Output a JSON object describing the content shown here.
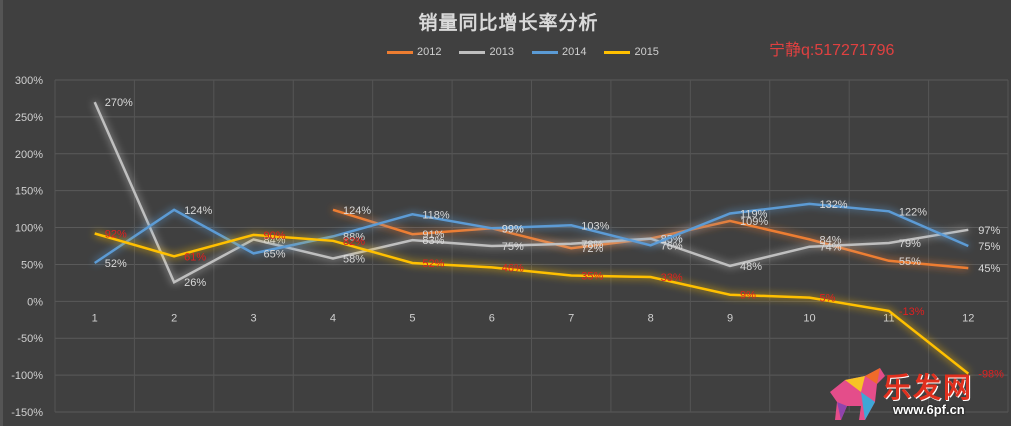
{
  "title": "销量同比增长率分析",
  "watermark": "宁静q:517271796",
  "logo": {
    "text": "乐发网",
    "url": "www.6pf.cn"
  },
  "colors": {
    "2012": "#ed7d31",
    "2013": "#bfbfbf",
    "2014": "#5b9bd5",
    "2015": "#ffc000",
    "label_2015": "#e02020",
    "background": "#404040",
    "grid": "#595959",
    "text": "#d9d9d9"
  },
  "legend": [
    {
      "name": "2012",
      "color": "#ed7d31"
    },
    {
      "name": "2013",
      "color": "#bfbfbf"
    },
    {
      "name": "2014",
      "color": "#5b9bd5"
    },
    {
      "name": "2015",
      "color": "#ffc000"
    }
  ],
  "chart_data": {
    "type": "line",
    "title": "销量同比增长率分析",
    "xlabel": "",
    "ylabel": "",
    "categories": [
      "1",
      "2",
      "3",
      "4",
      "5",
      "6",
      "7",
      "8",
      "9",
      "10",
      "11",
      "12"
    ],
    "y_ticks": [
      "300%",
      "250%",
      "200%",
      "150%",
      "100%",
      "50%",
      "0%",
      "-50%",
      "-100%",
      "-150%"
    ],
    "ylim": [
      -150,
      300
    ],
    "grid": true,
    "legend_position": "top",
    "series": [
      {
        "name": "2012",
        "values": [
          null,
          null,
          null,
          124,
          91,
          99,
          72,
          85,
          109,
          84,
          55,
          45
        ]
      },
      {
        "name": "2013",
        "values": [
          270,
          26,
          84,
          58,
          83,
          75,
          78,
          85,
          48,
          74,
          79,
          97
        ]
      },
      {
        "name": "2014",
        "values": [
          52,
          124,
          65,
          88,
          118,
          99,
          103,
          76,
          119,
          132,
          122,
          75
        ]
      },
      {
        "name": "2015",
        "values": [
          92,
          61,
          90,
          82,
          52,
          46,
          35,
          33,
          9,
          5,
          -13,
          -98
        ]
      }
    ]
  }
}
